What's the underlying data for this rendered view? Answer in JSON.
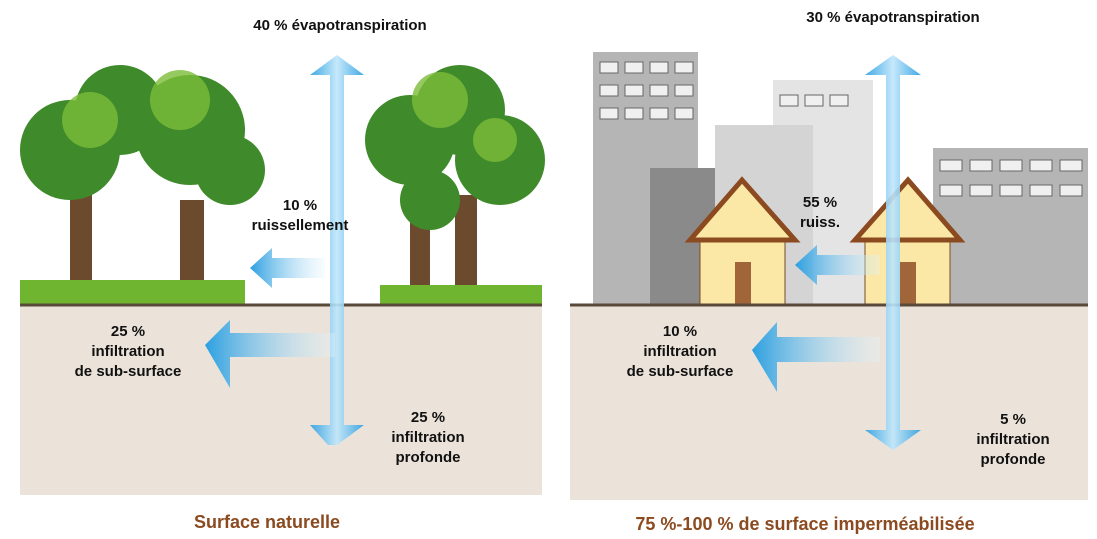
{
  "panels": [
    {
      "caption": "Surface naturelle",
      "evapotranspiration": [
        "40 % évapotranspiration"
      ],
      "runoff": [
        "10 %",
        "ruissellement"
      ],
      "shallow": [
        "25 %",
        "infiltration",
        "de sub-surface"
      ],
      "deep": [
        "25 %",
        "infiltration",
        "profonde"
      ]
    },
    {
      "caption": "75 %-100 % de surface imperméabilisée",
      "evapotranspiration": [
        "30 % évapotranspiration"
      ],
      "runoff": [
        "55 %",
        "ruiss."
      ],
      "shallow": [
        "10 %",
        "infiltration",
        "de sub-surface"
      ],
      "deep": [
        "5 %",
        "infiltration",
        "profonde"
      ]
    }
  ]
}
